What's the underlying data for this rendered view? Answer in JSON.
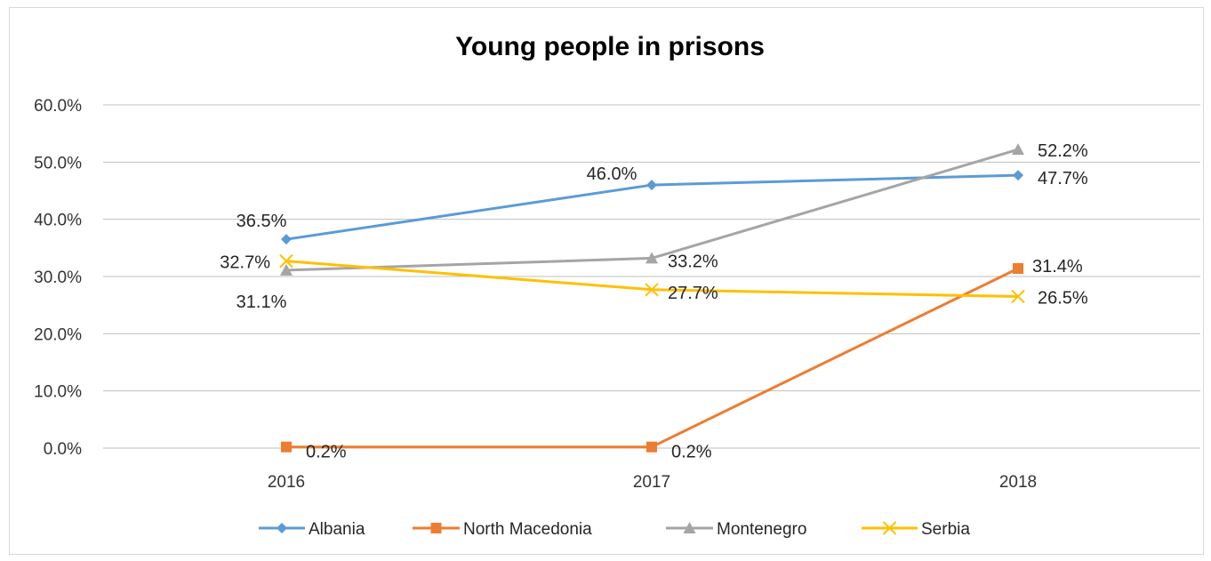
{
  "chart_data": {
    "type": "line",
    "title": "Young people in prisons",
    "categories": [
      "2016",
      "2017",
      "2018"
    ],
    "ylim": [
      0,
      60
    ],
    "yticks": [
      "0.0%",
      "10.0%",
      "20.0%",
      "30.0%",
      "40.0%",
      "50.0%",
      "60.0%"
    ],
    "grid": true,
    "legend_position": "bottom",
    "series": [
      {
        "name": "Albania",
        "values": [
          36.5,
          46.0,
          47.7
        ],
        "labels": [
          "36.5%",
          "46.0%",
          "47.7%"
        ],
        "color": "#5b9bd5",
        "marker": "diamond"
      },
      {
        "name": "North Macedonia",
        "values": [
          0.2,
          0.2,
          31.4
        ],
        "labels": [
          "0.2%",
          "0.2%",
          "31.4%"
        ],
        "color": "#ed7d31",
        "marker": "square"
      },
      {
        "name": "Montenegro",
        "values": [
          31.1,
          33.2,
          52.2
        ],
        "labels": [
          "31.1%",
          "33.2%",
          "52.2%"
        ],
        "color": "#a5a5a5",
        "marker": "triangle"
      },
      {
        "name": "Serbia",
        "values": [
          32.7,
          27.7,
          26.5
        ],
        "labels": [
          "32.7%",
          "27.7%",
          "26.5%"
        ],
        "color": "#ffc000",
        "marker": "x"
      }
    ]
  }
}
